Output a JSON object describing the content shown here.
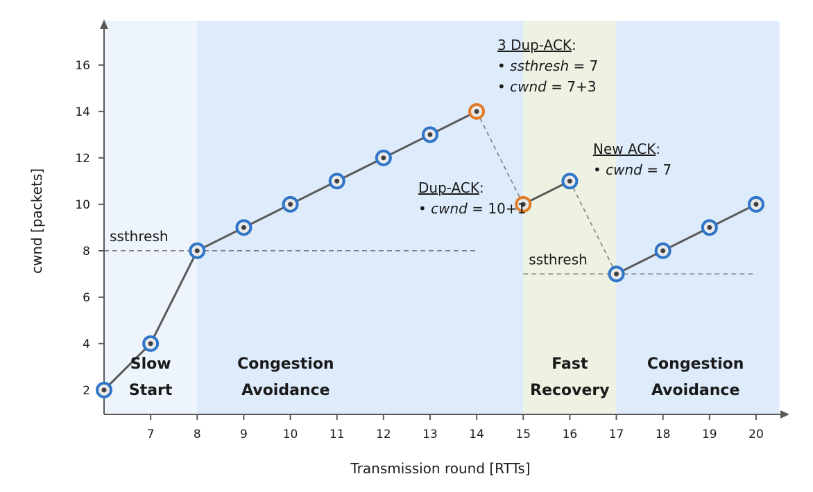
{
  "chart_data": {
    "type": "line",
    "xlabel": "Transmission round [RTTs]",
    "ylabel": "cwnd [packets]",
    "xlim": [
      6,
      20
    ],
    "ylim": [
      1.5,
      16.5
    ],
    "x_ticks": [
      7,
      8,
      9,
      10,
      11,
      12,
      13,
      14,
      15,
      16,
      17,
      18,
      19,
      20
    ],
    "y_ticks": [
      2,
      4,
      6,
      8,
      10,
      12,
      14,
      16
    ],
    "series": [
      {
        "points": [
          {
            "x": 6,
            "y": 2,
            "marker": "blue"
          },
          {
            "x": 7,
            "y": 4,
            "marker": "blue"
          },
          {
            "x": 8,
            "y": 8,
            "marker": "blue"
          },
          {
            "x": 9,
            "y": 9,
            "marker": "blue"
          },
          {
            "x": 10,
            "y": 10,
            "marker": "blue"
          },
          {
            "x": 11,
            "y": 11,
            "marker": "blue"
          },
          {
            "x": 12,
            "y": 12,
            "marker": "blue"
          },
          {
            "x": 13,
            "y": 13,
            "marker": "blue"
          },
          {
            "x": 14,
            "y": 14,
            "marker": "orange"
          },
          {
            "x": 15,
            "y": 10,
            "marker": "orange"
          },
          {
            "x": 16,
            "y": 11,
            "marker": "blue"
          },
          {
            "x": 17,
            "y": 7,
            "marker": "blue"
          },
          {
            "x": 18,
            "y": 8,
            "marker": "blue"
          },
          {
            "x": 19,
            "y": 9,
            "marker": "blue"
          },
          {
            "x": 20,
            "y": 10,
            "marker": "blue"
          }
        ],
        "solid_segments": [
          [
            6,
            7
          ],
          [
            7,
            8
          ],
          [
            8,
            9
          ],
          [
            9,
            10
          ],
          [
            10,
            11
          ],
          [
            11,
            12
          ],
          [
            12,
            13
          ],
          [
            13,
            14
          ],
          [
            15,
            16
          ],
          [
            17,
            18
          ],
          [
            18,
            19
          ],
          [
            19,
            20
          ]
        ],
        "dashed_segments": [
          [
            14,
            15
          ],
          [
            16,
            17
          ]
        ]
      }
    ],
    "thresholds": [
      {
        "label": "ssthresh",
        "y": 8,
        "x_from": 6,
        "x_to": 14
      },
      {
        "label": "ssthresh",
        "y": 7,
        "x_from": 15,
        "x_to": 20
      }
    ],
    "phases": [
      {
        "label_lines": [
          "Slow",
          "Start"
        ],
        "x_from": 6,
        "x_to": 8,
        "color": "#eef4fb"
      },
      {
        "label_lines": [
          "Congestion",
          "Avoidance"
        ],
        "x_from": 8,
        "x_to": 15,
        "color": "#ddebfa"
      },
      {
        "label_lines": [
          "Fast",
          "Recovery"
        ],
        "x_from": 15,
        "x_to": 17,
        "color": "#eef2e2"
      },
      {
        "label_lines": [
          "Congestion",
          "Avoidance"
        ],
        "x_from": 17,
        "x_to": 20.5,
        "color": "#ddebfa"
      }
    ],
    "annotations": [
      {
        "title": "3 Dup-ACK",
        "bullets": [
          {
            "var": "ssthresh",
            "rest": " = 7"
          },
          {
            "var": "cwnd",
            "rest": " = 7+3"
          }
        ]
      },
      {
        "title": "Dup-ACK",
        "bullets": [
          {
            "var": "cwnd",
            "rest": " = 10+1"
          }
        ]
      },
      {
        "title": "New ACK",
        "bullets": [
          {
            "var": "cwnd",
            "rest": " = 7"
          }
        ]
      }
    ],
    "colors": {
      "line": "#595959",
      "marker_blue": "#2e75c8",
      "marker_orange": "#e07b28",
      "marker_dot": "#404040",
      "axis": "#595959"
    }
  }
}
